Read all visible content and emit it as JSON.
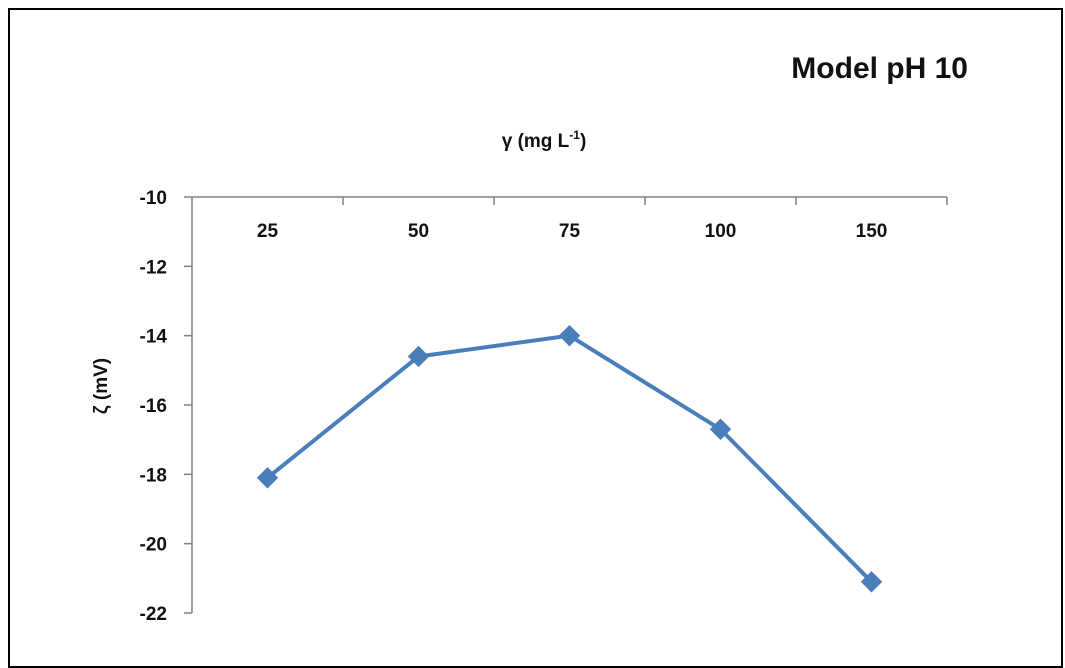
{
  "chart_data": {
    "type": "line",
    "title": "Model pH 10",
    "xlabel": "γ (mg L",
    "xlabel_superscript": "-1",
    "xlabel_suffix": ")",
    "ylabel": "ζ (mV)",
    "categories": [
      "25",
      "50",
      "75",
      "100",
      "150"
    ],
    "series": [
      {
        "values": [
          -18.1,
          -14.6,
          -14.0,
          -16.7,
          -21.1
        ],
        "color": "#4a7ebb",
        "marker": "diamond"
      }
    ],
    "ylim": [
      -22,
      -10
    ],
    "yticks": [
      -10,
      -12,
      -14,
      -16,
      -18,
      -20,
      -22
    ],
    "x_axis_position": "top",
    "y_reversed": false,
    "grid": false,
    "legend": "none"
  }
}
